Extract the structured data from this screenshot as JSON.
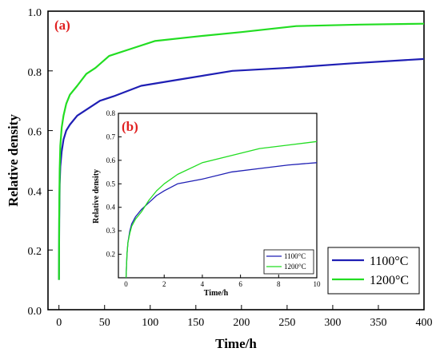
{
  "colors": {
    "series_1100": "#1f1fb4",
    "series_1200": "#22dd22",
    "panel_label": "#e02020",
    "axis": "#000000"
  },
  "chart_data": [
    {
      "id": "main",
      "type": "line",
      "panel_label": "(a)",
      "xlabel": "Time/h",
      "ylabel": "Relative density",
      "xlim": [
        -12,
        400
      ],
      "ylim": [
        0.0,
        1.0
      ],
      "xticks": [
        0,
        50,
        100,
        150,
        200,
        250,
        300,
        350,
        400
      ],
      "yticks": [
        0.0,
        0.2,
        0.4,
        0.6,
        0.8,
        1.0
      ],
      "ytick_labels": [
        "0.0",
        "0.2",
        "0.4",
        "0.6",
        "0.8",
        "1.0"
      ],
      "grid": false,
      "legend_position": "bottom-right",
      "series": [
        {
          "name": "1100°C",
          "color_key": "series_1100",
          "x": [
            0,
            0.3,
            0.8,
            1.5,
            3,
            5,
            8,
            12,
            20,
            30,
            45,
            60,
            90,
            130,
            190,
            250,
            320,
            400
          ],
          "y": [
            0.1,
            0.3,
            0.42,
            0.48,
            0.53,
            0.57,
            0.6,
            0.62,
            0.65,
            0.67,
            0.7,
            0.715,
            0.75,
            0.77,
            0.8,
            0.81,
            0.825,
            0.84
          ]
        },
        {
          "name": "1200°C",
          "color_key": "series_1200",
          "x": [
            0,
            0.3,
            0.8,
            1.5,
            3,
            5,
            8,
            12,
            20,
            30,
            40,
            55,
            80,
            105,
            150,
            200,
            260,
            330,
            400
          ],
          "y": [
            0.1,
            0.33,
            0.47,
            0.55,
            0.61,
            0.65,
            0.69,
            0.72,
            0.75,
            0.79,
            0.81,
            0.85,
            0.875,
            0.9,
            0.915,
            0.93,
            0.95,
            0.955,
            0.958
          ]
        }
      ]
    },
    {
      "id": "inset",
      "type": "line",
      "panel_label": "(b)",
      "xlabel": "Time/h",
      "ylabel": "Relative density",
      "xlim": [
        -0.4,
        10
      ],
      "ylim": [
        0.1,
        0.8
      ],
      "xticks": [
        0,
        2,
        4,
        6,
        8,
        10
      ],
      "yticks": [
        0.2,
        0.3,
        0.4,
        0.5,
        0.6,
        0.7,
        0.8
      ],
      "ytick_labels": [
        "0.2",
        "0.3",
        "0.4",
        "0.5",
        "0.6",
        "0.7",
        "0.8"
      ],
      "grid": false,
      "legend_position": "bottom-right",
      "series": [
        {
          "name": "1100°C",
          "color_key": "series_1100",
          "x": [
            0,
            0.05,
            0.1,
            0.2,
            0.3,
            0.5,
            0.8,
            1.2,
            1.6,
            2,
            2.7,
            4,
            5.5,
            7,
            8.5,
            10
          ],
          "y": [
            0.1,
            0.2,
            0.25,
            0.3,
            0.33,
            0.36,
            0.39,
            0.42,
            0.45,
            0.47,
            0.5,
            0.52,
            0.55,
            0.565,
            0.58,
            0.59
          ]
        },
        {
          "name": "1200°C",
          "color_key": "series_1200",
          "x": [
            0,
            0.05,
            0.1,
            0.2,
            0.3,
            0.5,
            0.8,
            1.2,
            1.6,
            2,
            2.7,
            4,
            5.5,
            7,
            8.5,
            10
          ],
          "y": [
            0.1,
            0.2,
            0.25,
            0.29,
            0.32,
            0.35,
            0.38,
            0.43,
            0.47,
            0.5,
            0.54,
            0.59,
            0.62,
            0.65,
            0.665,
            0.68
          ]
        }
      ]
    }
  ]
}
